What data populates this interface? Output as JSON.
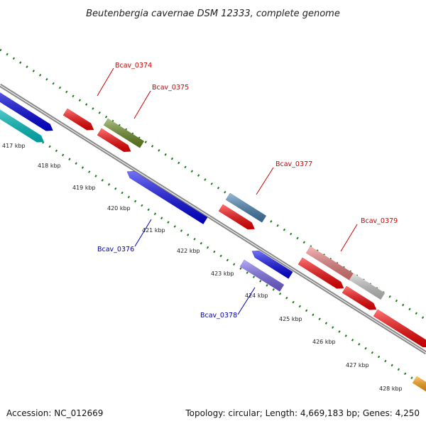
{
  "title": "Beutenbergia cavernae DSM 12333, complete genome",
  "footer": {
    "accession": "Accession: NC_012669",
    "topology": "Topology: circular; Length: 4,669,183 bp; Genes: 4,250"
  },
  "ticks": [
    "417 kbp",
    "418 kbp",
    "419 kbp",
    "420 kbp",
    "421 kbp",
    "422 kbp",
    "423 kbp",
    "424 kbp",
    "425 kbp",
    "426 kbp",
    "427 kbp",
    "428 kbp"
  ],
  "gene_labels": {
    "bcav_0374": "Bcav_0374",
    "bcav_0375": "Bcav_0375",
    "bcav_0376": "Bcav_0376",
    "bcav_0377": "Bcav_0377",
    "bcav_0378": "Bcav_0378",
    "bcav_0379": "Bcav_0379"
  },
  "colors": {
    "forward_label": "#cc0000",
    "reverse_label": "#0000aa",
    "backbone": "#8a8a8a",
    "dotted_track": "#1a7a1a",
    "red_gene": "#ff0000",
    "blue_gene": "#0000ee",
    "cyan_gene": "#00cccc",
    "olive_gene": "#6b8e23",
    "steelblue_gene": "#4682b4",
    "pink_gene": "#f08080",
    "lightgray_gene": "#cccccc",
    "purple_gene": "#7b68ee",
    "orange_gene": "#ff9900"
  }
}
